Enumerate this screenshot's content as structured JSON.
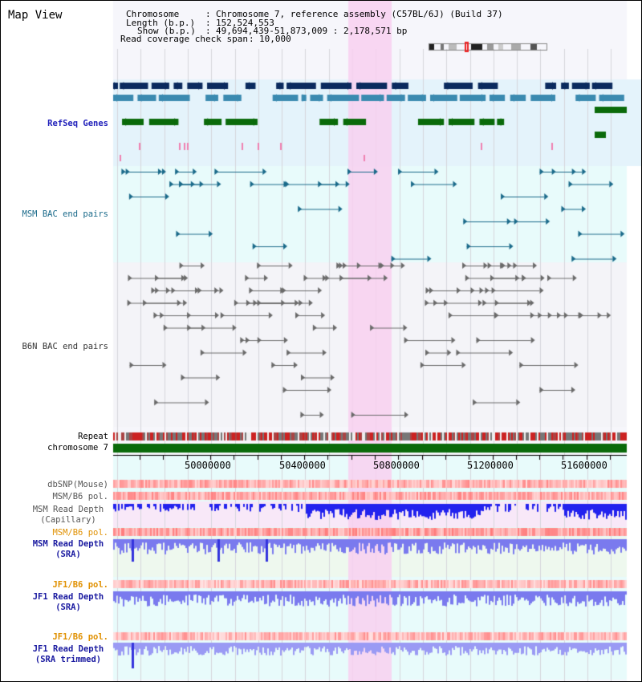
{
  "title": "Map View",
  "info": {
    "chromosome_key": "Chromosome",
    "chromosome_value": "Chromosome 7, reference assembly (C57BL/6J) (Build 37)",
    "length_key": "Length (b.p.)",
    "length_value": "152,524,553",
    "show_key": "Show (b.p.)",
    "show_value": "49,694,439-51,873,009 : 2,178,571 bp",
    "coverage_key": "Read coverage check span",
    "coverage_value": "10,000"
  },
  "tracks": {
    "refseq": "RefSeq Genes",
    "msm_bac": "MSM BAC end pairs",
    "b6n_bac": "B6N BAC end pairs",
    "repeat": "Repeat",
    "chromosome": "chromosome 7",
    "dbsnp": "dbSNP(Mouse)",
    "msm_b6_pol_1": "MSM/B6 pol.",
    "msm_depth_cap_1": "MSM Read Depth",
    "msm_depth_cap_2": "(Capillary)",
    "msm_b6_pol_2": "MSM/B6 pol.",
    "msm_depth_sra_1": "MSM Read Depth",
    "msm_depth_sra_2": "(SRA)",
    "jf1_b6_pol_1": "JF1/B6 pol.",
    "jf1_depth_sra_1": "JF1 Read Depth",
    "jf1_depth_sra_2": "(SRA)",
    "jf1_b6_pol_2": "JF1/B6 pol.",
    "jf1_depth_trim_1": "JF1 Read Depth",
    "jf1_depth_trim_2": "(SRA trimmed)"
  },
  "axis": {
    "ticks": [
      "50000000",
      "50400000",
      "50800000",
      "51200000",
      "51600000"
    ]
  },
  "colors": {
    "refseq_label": "#2222bb",
    "msm_bac_label": "#1a6a8a",
    "b6n_bac_label": "#333333",
    "orange_label": "#e09000",
    "blue_label": "#1a1aa0",
    "highlight": "#f8d0f0",
    "gene_dark": "#0a2a5e",
    "gene_mid": "#3a8ab0",
    "gene_green": "#0a6a0a",
    "chromosome_bar": "#0a6a0a",
    "depth_blue": "#2222ee"
  }
}
